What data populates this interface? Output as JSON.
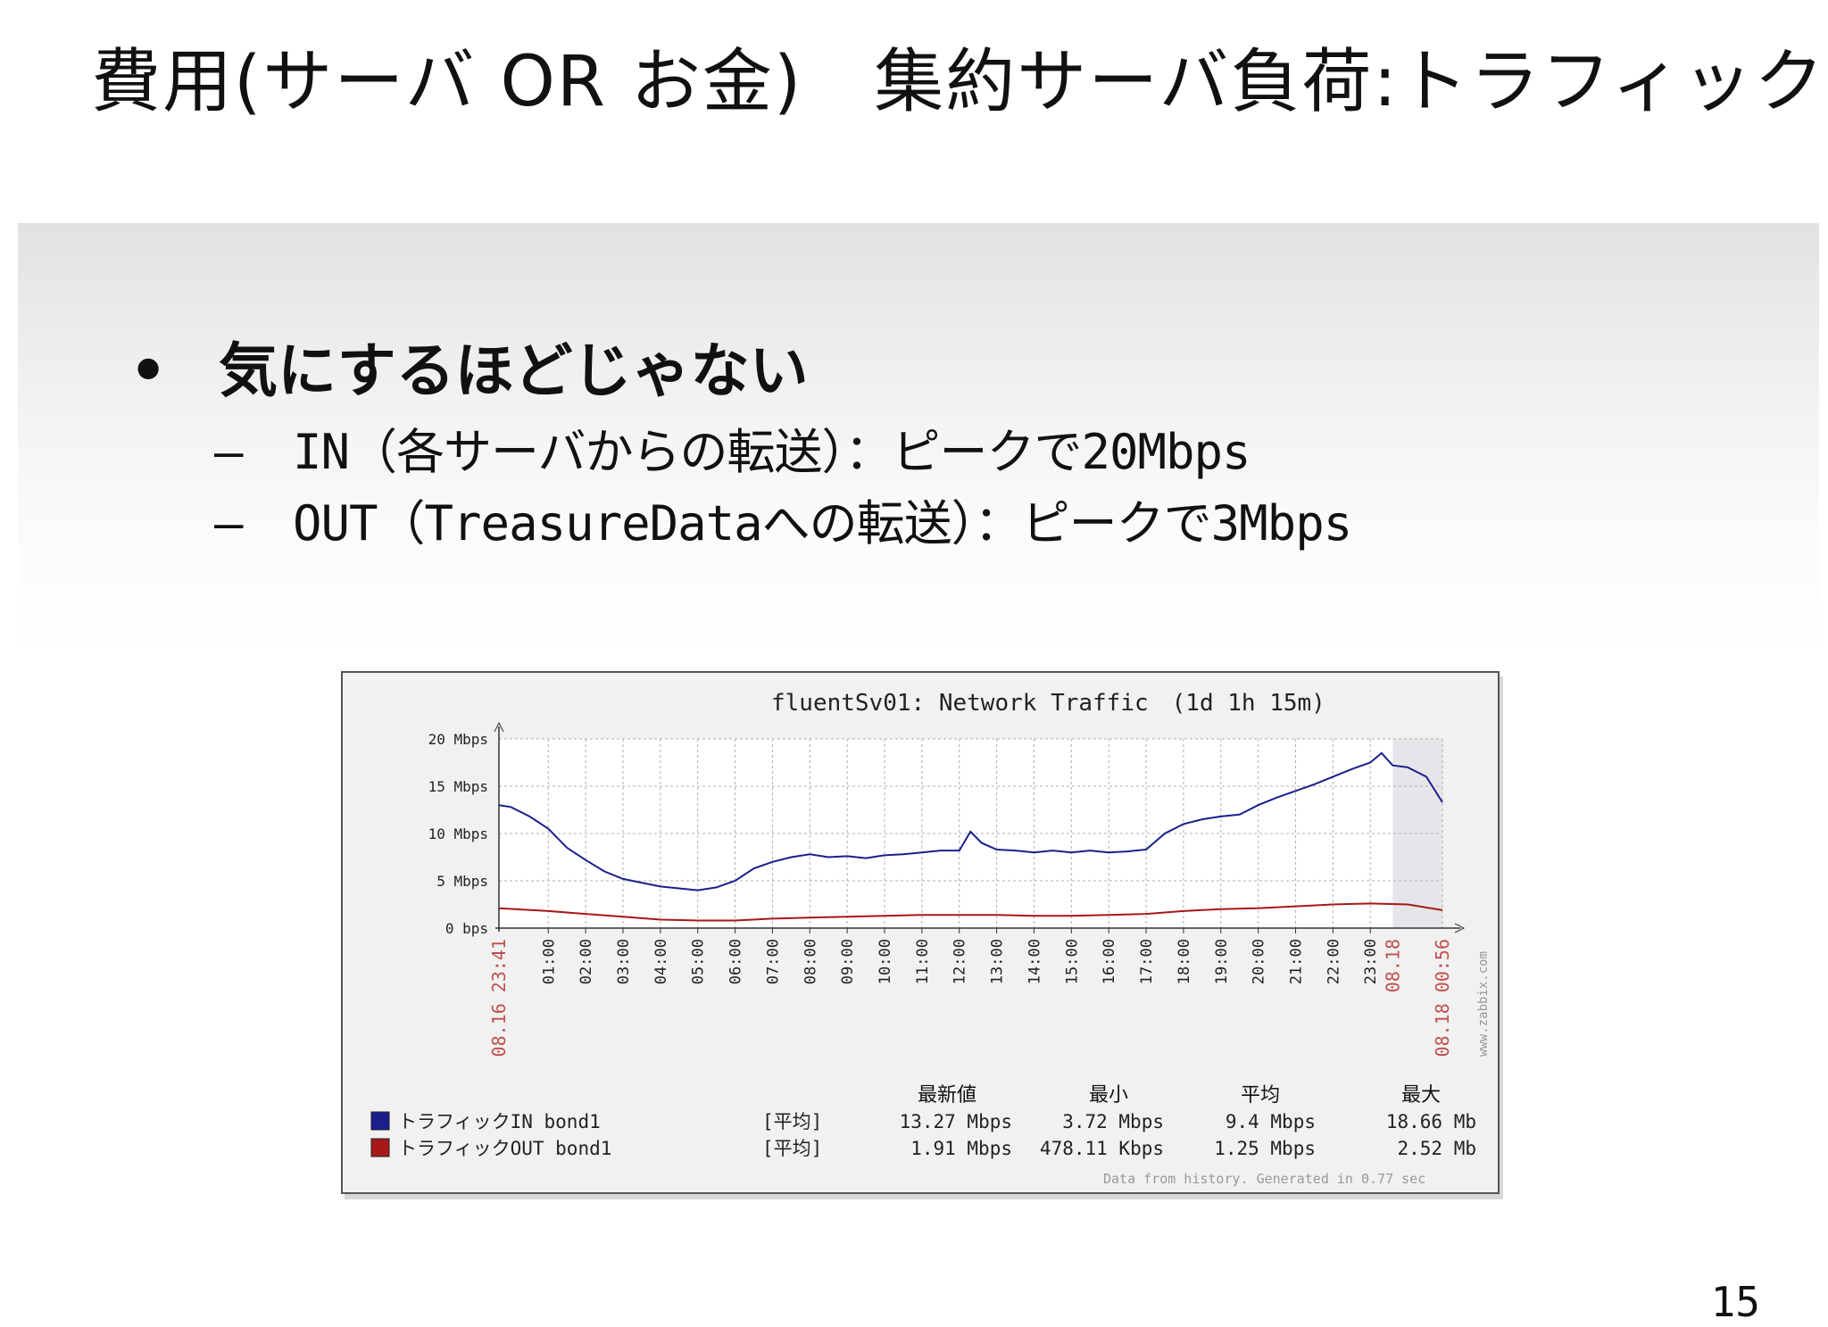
{
  "slide": {
    "title": "費用(サーバ OR お金)　集約サーバ負荷:トラフィック",
    "bullet": "気にするほどじゃない",
    "bullet_marker": "•",
    "sub_dash": "–",
    "sub_items": [
      "IN（各サーバからの転送）：ピークで20Mbps",
      "OUT（TreasureDataへの転送）：ピークで3Mbps"
    ],
    "page_number": "15"
  },
  "colors": {
    "in_line": "#1a1f8c",
    "out_line": "#a81818",
    "date_label": "#c0504d",
    "grid": "#b0b0b0"
  },
  "chart_data": {
    "type": "line",
    "title": "fluentSv01: Network Traffic　(1d 1h 15m)",
    "y_ticks": [
      "20 Mbps",
      "15 Mbps",
      "10 Mbps",
      "5 Mbps",
      "0 bps"
    ],
    "ylim": [
      0,
      20
    ],
    "x_ticks": [
      "01:00",
      "02:00",
      "03:00",
      "04:00",
      "05:00",
      "06:00",
      "07:00",
      "08:00",
      "09:00",
      "10:00",
      "11:00",
      "12:00",
      "13:00",
      "14:00",
      "15:00",
      "16:00",
      "17:00",
      "18:00",
      "19:00",
      "20:00",
      "21:00",
      "22:00",
      "23:00"
    ],
    "x_start_label": "08.16 23:41",
    "x_mid_label": "08.18",
    "x_end_label": "08.18 00:56",
    "series": [
      {
        "name": "トラフィックIN bond1",
        "x": [
          -0.32,
          0,
          0.5,
          1,
          1.5,
          2,
          2.5,
          3,
          3.5,
          4,
          4.5,
          5,
          5.5,
          6,
          6.5,
          7,
          7.5,
          8,
          8.5,
          9,
          9.5,
          10,
          10.5,
          11,
          11.5,
          12,
          12.3,
          12.6,
          13,
          13.5,
          14,
          14.5,
          15,
          15.5,
          16,
          16.5,
          17,
          17.5,
          18,
          18.5,
          19,
          19.5,
          20,
          20.5,
          21,
          21.5,
          22,
          22.5,
          23,
          23.3,
          23.6,
          24,
          24.5,
          24.93
        ],
        "values": [
          13.0,
          12.8,
          11.8,
          10.5,
          8.5,
          7.2,
          6.0,
          5.2,
          4.8,
          4.4,
          4.2,
          4.0,
          4.3,
          5.0,
          6.3,
          7.0,
          7.5,
          7.8,
          7.5,
          7.6,
          7.4,
          7.7,
          7.8,
          8.0,
          8.2,
          8.2,
          10.2,
          9.0,
          8.3,
          8.2,
          8.0,
          8.2,
          8.0,
          8.2,
          8.0,
          8.1,
          8.3,
          10.0,
          11.0,
          11.5,
          11.8,
          12.0,
          13.0,
          13.8,
          14.5,
          15.2,
          16.0,
          16.8,
          17.5,
          18.5,
          17.2,
          17.0,
          16.0,
          13.3
        ]
      },
      {
        "name": "トラフィックOUT bond1",
        "x": [
          -0.32,
          1,
          2,
          3,
          4,
          5,
          6,
          7,
          8,
          9,
          10,
          11,
          12,
          13,
          14,
          15,
          16,
          17,
          18,
          19,
          20,
          21,
          22,
          23,
          24,
          24.93
        ],
        "values": [
          2.1,
          1.8,
          1.5,
          1.2,
          0.9,
          0.8,
          0.8,
          1.0,
          1.1,
          1.2,
          1.3,
          1.4,
          1.4,
          1.4,
          1.3,
          1.3,
          1.4,
          1.5,
          1.8,
          2.0,
          2.1,
          2.3,
          2.5,
          2.6,
          2.5,
          1.9
        ]
      }
    ],
    "xlim": [
      -0.32,
      24.93
    ],
    "legend_header": [
      "最新値",
      "最小",
      "平均",
      "最大"
    ],
    "legend_rows": [
      {
        "label": "トラフィックIN bond1",
        "stat": "[平均]",
        "latest": "13.27 Mbps",
        "min": "3.72 Mbps",
        "avg": "9.4 Mbps",
        "max": "18.66 Mb"
      },
      {
        "label": "トラフィックOUT bond1",
        "stat": "[平均]",
        "latest": "1.91 Mbps",
        "min": "478.11 Kbps",
        "avg": "1.25 Mbps",
        "max": "2.52 Mb"
      }
    ],
    "footer": "Data from history. Generated in 0.77 sec",
    "watermark": "www.zabbix.com"
  }
}
